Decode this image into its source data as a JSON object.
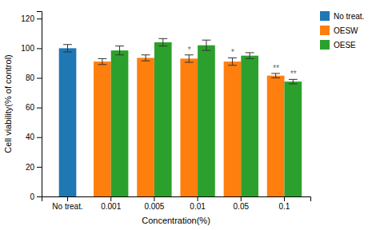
{
  "chart_data": {
    "type": "bar",
    "xlabel": "Concentration(%)",
    "ylabel": "Cell viability(% of control)",
    "categories": [
      "No treat.",
      "0.001",
      "0.005",
      "0.01",
      "0.05",
      "0.1"
    ],
    "series": [
      {
        "name": "No treat.",
        "values": [
          100,
          null,
          null,
          null,
          null,
          null
        ],
        "errors": [
          2.5,
          null,
          null,
          null,
          null,
          null
        ]
      },
      {
        "name": "OESW",
        "values": [
          null,
          91.0,
          93.5,
          93.0,
          91.0,
          81.5
        ],
        "errors": [
          null,
          2.0,
          2.0,
          2.5,
          2.5,
          1.5
        ],
        "annotations": [
          null,
          null,
          null,
          "*",
          "*",
          "**"
        ]
      },
      {
        "name": "OESE",
        "values": [
          null,
          98.5,
          104.0,
          102.0,
          95.0,
          77.5
        ],
        "errors": [
          null,
          3.0,
          2.5,
          3.5,
          2.0,
          1.5
        ],
        "annotations": [
          null,
          null,
          null,
          null,
          null,
          "**"
        ]
      }
    ],
    "ylim": [
      0,
      125
    ],
    "yticks": [
      0,
      20,
      40,
      60,
      80,
      100,
      120
    ],
    "legend": "right"
  }
}
